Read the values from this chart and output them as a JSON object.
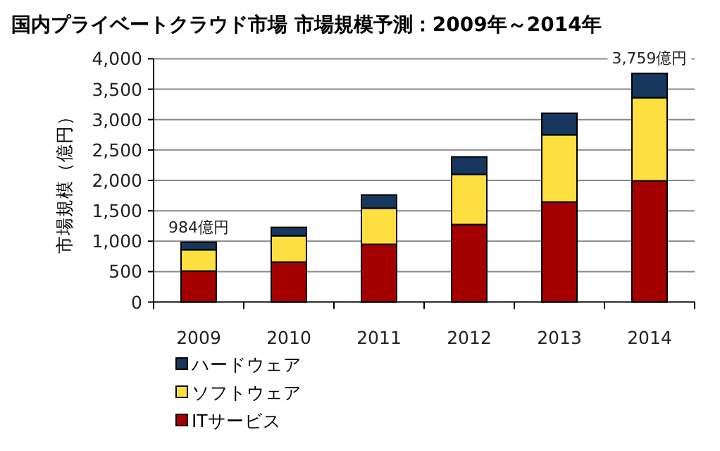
{
  "chart_data": {
    "type": "bar",
    "stacked": true,
    "title": "国内プライベートクラウド市場 市場規模予測：2009年～2014年",
    "ylabel": "市場規模（億円）",
    "categories": [
      "2009",
      "2010",
      "2011",
      "2012",
      "2013",
      "2014"
    ],
    "series": [
      {
        "name": "ITサービス",
        "color": "#a50000",
        "values": [
          510,
          656,
          950,
          1275,
          1645,
          1993
        ]
      },
      {
        "name": "ソフトウェア",
        "color": "#fde040",
        "values": [
          350,
          433,
          593,
          825,
          1104,
          1367
        ]
      },
      {
        "name": "ハードウェア",
        "color": "#17375e",
        "values": [
          124,
          139,
          218,
          287,
          356,
          399
        ]
      }
    ],
    "ylim": [
      0,
      4000
    ],
    "yticks": [
      0,
      500,
      {
        "value": 1000,
        "label": "1,000"
      },
      {
        "value": 1500,
        "label": "1,500"
      },
      {
        "value": 2000,
        "label": "2,000"
      },
      {
        "value": 2500,
        "label": "2,500"
      },
      {
        "value": 3000,
        "label": "3,000"
      },
      {
        "value": 3500,
        "label": "3,500"
      },
      {
        "value": 4000,
        "label": "4,000"
      }
    ],
    "grid": "y",
    "legend": "bottom",
    "annotations": [
      {
        "text": "984億円",
        "x": "2009",
        "y": 984
      },
      {
        "text": "3,759億円",
        "x": "2014",
        "y": 3759
      }
    ]
  }
}
